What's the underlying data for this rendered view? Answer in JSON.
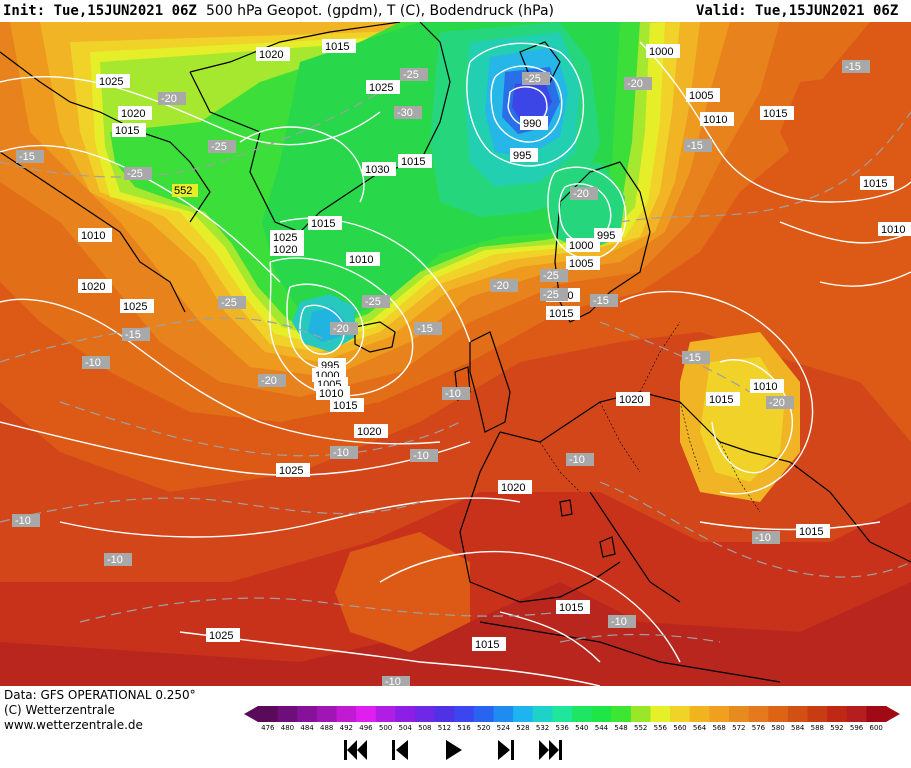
{
  "header": {
    "init_label": "Init: Tue,15JUN2021 06Z",
    "description": "500 hPa Geopot. (gpdm), T (C), Bodendruck (hPa)",
    "valid_label": "Valid: Tue,15JUN2021 06Z"
  },
  "footer": {
    "source": "Data: GFS OPERATIONAL 0.250°",
    "copyright": "(C) Wetterzentrale",
    "url": "www.wetterzentrale.de"
  },
  "colorbar": {
    "ticks": [
      "476",
      "480",
      "484",
      "488",
      "492",
      "496",
      "500",
      "504",
      "508",
      "512",
      "516",
      "520",
      "524",
      "528",
      "532",
      "536",
      "540",
      "544",
      "548",
      "552",
      "556",
      "560",
      "564",
      "568",
      "572",
      "576",
      "580",
      "584",
      "588",
      "592",
      "596",
      "600"
    ],
    "colors": [
      "#5a0a5a",
      "#6e0e7a",
      "#86129a",
      "#a016b4",
      "#c21ad2",
      "#e01ef0",
      "#b01ee6",
      "#8c1ee6",
      "#6e28e6",
      "#5032e6",
      "#3c46f0",
      "#2864f0",
      "#1e8cf0",
      "#1eb4f0",
      "#1ed2c8",
      "#1ee69a",
      "#1ee664",
      "#1ee646",
      "#3ce632",
      "#9ae628",
      "#e6f028",
      "#f0d228",
      "#f0b41e",
      "#f0a01e",
      "#e68c1e",
      "#e6781e",
      "#dc6414",
      "#d25014",
      "#c83c14",
      "#be2814",
      "#b41e1e",
      "#a00a14"
    ]
  },
  "nav": {
    "buttons": [
      "first",
      "previous",
      "play",
      "next",
      "last"
    ]
  },
  "map": {
    "pressure_labels": [
      "1015",
      "1000",
      "1020",
      "1025",
      "1025",
      "1005",
      "1020",
      "1010",
      "1015",
      "1015",
      "1030",
      "1015",
      "995",
      "990",
      "1015",
      "1025",
      "1020",
      "1010",
      "1010",
      "1000",
      "995",
      "1005",
      "1010",
      "1020",
      "1010",
      "1015",
      "1025",
      "995",
      "1000",
      "1005",
      "1010",
      "1015",
      "1020",
      "1020",
      "1010",
      "1015",
      "1025",
      "1020",
      "1015",
      "1025",
      "1015",
      "1015",
      "1015"
    ],
    "temperature_labels": [
      "-15",
      "-25",
      "-20",
      "-25",
      "-30",
      "-25",
      "-20",
      "-15",
      "-15",
      "-25",
      "-20",
      "-25",
      "-25",
      "-20",
      "-15",
      "-25",
      "-20",
      "-25",
      "-20",
      "-15",
      "-10",
      "-15",
      "-15",
      "-20",
      "-10",
      "-10",
      "-10",
      "-10",
      "-10",
      "-10",
      "-10",
      "-10",
      "-10"
    ],
    "height_label": "552"
  }
}
